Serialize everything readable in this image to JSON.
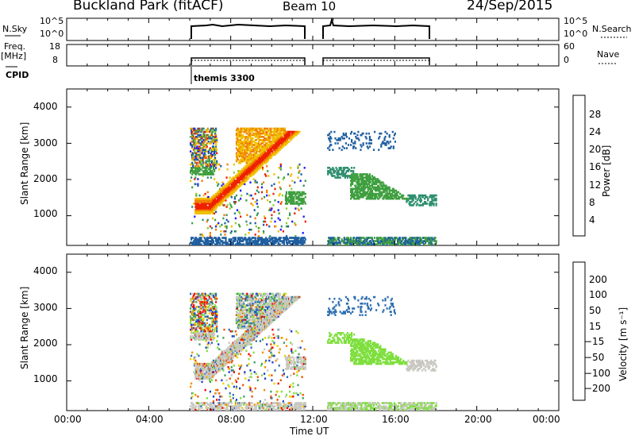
{
  "header": {
    "title": "Buckland Park (fitACF)",
    "beam": "Beam 10",
    "date": "24/Sep/2015"
  },
  "top_panels": {
    "nsky_label": "N.Sky",
    "nsky_ticks": [
      "10^5",
      "10^0"
    ],
    "nsearch_label": "N.Search",
    "nsearch_ticks": [
      "10^5",
      "10^0"
    ],
    "freq_label_1": "Freq.",
    "freq_label_2": "[MHz]",
    "freq_ticks": [
      "18",
      "8"
    ],
    "nave_label": "Nave",
    "nave_ticks": [
      "60",
      "0"
    ],
    "cpid_label": "CPID",
    "cpid_text": "themis 3300"
  },
  "x_axis": {
    "label": "Time UT",
    "ticks": [
      "00:00",
      "04:00",
      "08:00",
      "12:00",
      "16:00",
      "20:00",
      "00:00"
    ]
  },
  "chart_data": [
    {
      "type": "heatmap",
      "panel": "power",
      "ylabel": "Slant Range [km]",
      "yticks": [
        "4000",
        "3000",
        "2000",
        "1000"
      ],
      "ylim": [
        180,
        4500
      ],
      "xlim_hours": [
        0,
        24
      ],
      "data_coverage_hours": [
        [
          6.0,
          11.6
        ],
        [
          12.7,
          18.0
        ]
      ],
      "colorbar_label": "Power [dB]",
      "colorbar_ticks": [
        "28",
        "24",
        "20",
        "16",
        "12",
        "8",
        "4"
      ],
      "colorbar_range": [
        0,
        32
      ],
      "colors": [
        "#1f1fff",
        "#1f5fa0",
        "#2f8f6f",
        "#3f9f3f",
        "#8fcf2f",
        "#f0c000",
        "#f08000",
        "#f02000"
      ]
    },
    {
      "type": "heatmap",
      "panel": "velocity",
      "ylabel": "Slant Range [km]",
      "yticks": [
        "4000",
        "3000",
        "2000",
        "1000"
      ],
      "ylim": [
        180,
        4500
      ],
      "xlim_hours": [
        0,
        24
      ],
      "data_coverage_hours": [
        [
          6.0,
          11.6
        ],
        [
          12.7,
          18.0
        ]
      ],
      "colorbar_label": "Velocity [m s⁻¹]",
      "colorbar_ticks": [
        "200",
        "100",
        "50",
        "15",
        "−15",
        "−50",
        "−100",
        "−200"
      ],
      "colors": [
        "#1f3fcf",
        "#2f6fb0",
        "#3f9f5f",
        "#7fdf3f",
        "#c8c8c0",
        "#f0d000",
        "#f09000",
        "#f05000",
        "#f00000"
      ]
    }
  ]
}
